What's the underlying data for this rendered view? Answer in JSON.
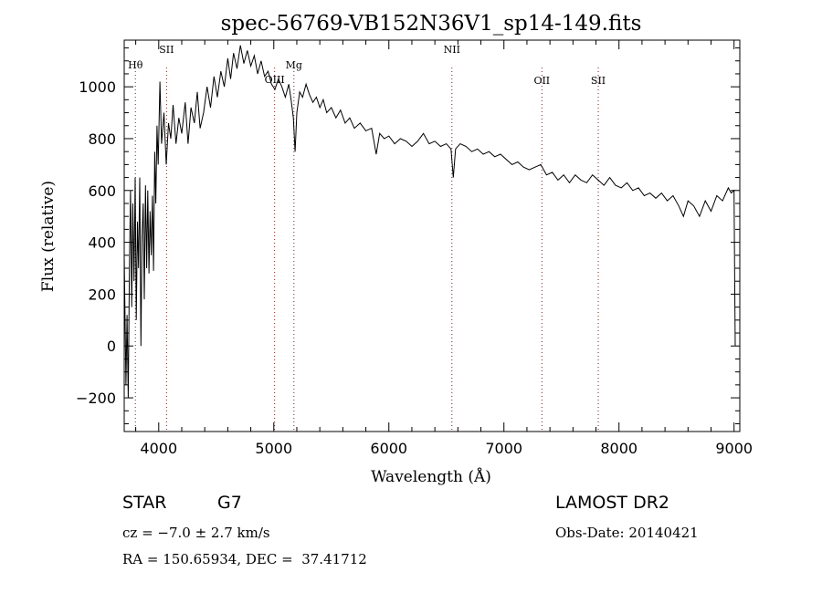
{
  "chart_data": {
    "type": "line",
    "title": "spec-56769-VB152N36V1_sp14-149.fits",
    "xlabel": "Wavelength (Å)",
    "ylabel": "Flux (relative)",
    "xlim": [
      3700,
      9050
    ],
    "ylim": [
      -330,
      1180
    ],
    "xticks": [
      4000,
      5000,
      6000,
      7000,
      8000,
      9000
    ],
    "yticks": [
      -200,
      0,
      200,
      400,
      600,
      800,
      1000
    ],
    "grid": false,
    "series": [
      {
        "points": [
          [
            3700,
            350
          ],
          [
            3715,
            -150
          ],
          [
            3725,
            120
          ],
          [
            3735,
            -200
          ],
          [
            3745,
            300
          ],
          [
            3755,
            600
          ],
          [
            3765,
            150
          ],
          [
            3775,
            550
          ],
          [
            3785,
            250
          ],
          [
            3795,
            650
          ],
          [
            3805,
            100
          ],
          [
            3815,
            480
          ],
          [
            3825,
            300
          ],
          [
            3835,
            650
          ],
          [
            3845,
            0
          ],
          [
            3855,
            420
          ],
          [
            3865,
            550
          ],
          [
            3875,
            180
          ],
          [
            3885,
            620
          ],
          [
            3895,
            300
          ],
          [
            3905,
            600
          ],
          [
            3915,
            280
          ],
          [
            3925,
            520
          ],
          [
            3935,
            350
          ],
          [
            3945,
            580
          ],
          [
            3955,
            290
          ],
          [
            3965,
            750
          ],
          [
            3975,
            550
          ],
          [
            3985,
            850
          ],
          [
            3995,
            700
          ],
          [
            4010,
            1020
          ],
          [
            4025,
            780
          ],
          [
            4045,
            900
          ],
          [
            4065,
            700
          ],
          [
            4085,
            860
          ],
          [
            4105,
            800
          ],
          [
            4125,
            930
          ],
          [
            4150,
            780
          ],
          [
            4175,
            880
          ],
          [
            4200,
            820
          ],
          [
            4230,
            940
          ],
          [
            4255,
            780
          ],
          [
            4280,
            920
          ],
          [
            4310,
            860
          ],
          [
            4335,
            980
          ],
          [
            4360,
            840
          ],
          [
            4390,
            900
          ],
          [
            4420,
            1000
          ],
          [
            4450,
            920
          ],
          [
            4480,
            1040
          ],
          [
            4510,
            960
          ],
          [
            4540,
            1060
          ],
          [
            4570,
            1000
          ],
          [
            4600,
            1110
          ],
          [
            4625,
            1030
          ],
          [
            4650,
            1130
          ],
          [
            4680,
            1070
          ],
          [
            4710,
            1160
          ],
          [
            4740,
            1090
          ],
          [
            4770,
            1140
          ],
          [
            4800,
            1080
          ],
          [
            4830,
            1120
          ],
          [
            4860,
            1050
          ],
          [
            4890,
            1100
          ],
          [
            4920,
            1040
          ],
          [
            4950,
            1060
          ],
          [
            4980,
            1010
          ],
          [
            5010,
            990
          ],
          [
            5040,
            1030
          ],
          [
            5070,
            1000
          ],
          [
            5100,
            960
          ],
          [
            5130,
            1010
          ],
          [
            5150,
            950
          ],
          [
            5170,
            880
          ],
          [
            5185,
            750
          ],
          [
            5200,
            900
          ],
          [
            5225,
            980
          ],
          [
            5250,
            960
          ],
          [
            5280,
            1010
          ],
          [
            5310,
            970
          ],
          [
            5340,
            940
          ],
          [
            5370,
            960
          ],
          [
            5400,
            920
          ],
          [
            5430,
            950
          ],
          [
            5460,
            900
          ],
          [
            5500,
            920
          ],
          [
            5540,
            880
          ],
          [
            5580,
            910
          ],
          [
            5620,
            860
          ],
          [
            5660,
            880
          ],
          [
            5700,
            840
          ],
          [
            5750,
            860
          ],
          [
            5800,
            830
          ],
          [
            5850,
            840
          ],
          [
            5890,
            740
          ],
          [
            5920,
            820
          ],
          [
            5960,
            800
          ],
          [
            6000,
            810
          ],
          [
            6050,
            780
          ],
          [
            6100,
            800
          ],
          [
            6150,
            790
          ],
          [
            6200,
            770
          ],
          [
            6250,
            790
          ],
          [
            6300,
            820
          ],
          [
            6350,
            780
          ],
          [
            6400,
            790
          ],
          [
            6450,
            770
          ],
          [
            6500,
            780
          ],
          [
            6540,
            760
          ],
          [
            6560,
            650
          ],
          [
            6580,
            760
          ],
          [
            6620,
            780
          ],
          [
            6670,
            770
          ],
          [
            6720,
            750
          ],
          [
            6770,
            760
          ],
          [
            6820,
            740
          ],
          [
            6870,
            750
          ],
          [
            6920,
            730
          ],
          [
            6970,
            740
          ],
          [
            7020,
            720
          ],
          [
            7070,
            700
          ],
          [
            7120,
            710
          ],
          [
            7170,
            690
          ],
          [
            7220,
            680
          ],
          [
            7270,
            690
          ],
          [
            7320,
            700
          ],
          [
            7370,
            660
          ],
          [
            7420,
            670
          ],
          [
            7470,
            640
          ],
          [
            7520,
            660
          ],
          [
            7570,
            630
          ],
          [
            7620,
            660
          ],
          [
            7670,
            640
          ],
          [
            7720,
            630
          ],
          [
            7770,
            660
          ],
          [
            7820,
            640
          ],
          [
            7870,
            620
          ],
          [
            7920,
            650
          ],
          [
            7970,
            620
          ],
          [
            8020,
            610
          ],
          [
            8070,
            630
          ],
          [
            8120,
            600
          ],
          [
            8170,
            610
          ],
          [
            8220,
            580
          ],
          [
            8270,
            590
          ],
          [
            8320,
            570
          ],
          [
            8370,
            590
          ],
          [
            8420,
            560
          ],
          [
            8470,
            580
          ],
          [
            8520,
            540
          ],
          [
            8560,
            500
          ],
          [
            8600,
            560
          ],
          [
            8650,
            540
          ],
          [
            8700,
            500
          ],
          [
            8750,
            560
          ],
          [
            8800,
            520
          ],
          [
            8850,
            580
          ],
          [
            8900,
            560
          ],
          [
            8950,
            610
          ],
          [
            8975,
            590
          ],
          [
            9000,
            600
          ],
          [
            9005,
            300
          ],
          [
            9010,
            0
          ]
        ]
      }
    ],
    "lines": [
      {
        "label": "Hθ",
        "x": 3797
      },
      {
        "label": "SII",
        "x": 4068
      },
      {
        "label": "OIII",
        "x": 5007
      },
      {
        "label": "Mg",
        "x": 5175
      },
      {
        "label": "NII",
        "x": 6548
      },
      {
        "label": "OII",
        "x": 7330
      },
      {
        "label": "SII",
        "x": 7820
      }
    ]
  },
  "info": {
    "class": "STAR",
    "subclass": "G7",
    "survey": "LAMOST DR2",
    "cz": "cz = −7.0 ± 2.7 km/s",
    "obs_date": "Obs-Date: 20140421",
    "coords": "RA = 150.65934, DEC =  37.41712"
  }
}
